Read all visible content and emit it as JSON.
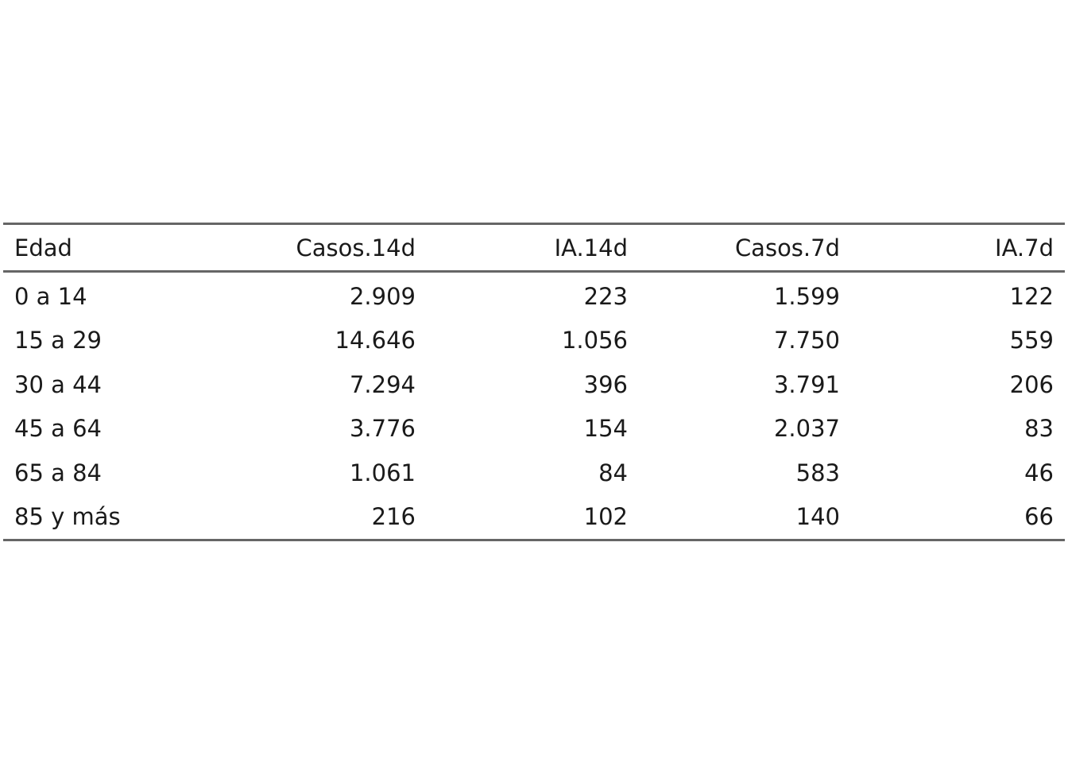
{
  "chart_data": {
    "type": "table",
    "columns": [
      "Edad",
      "Casos.14d",
      "IA.14d",
      "Casos.7d",
      "IA.7d"
    ],
    "rows": [
      [
        "0 a 14",
        "2.909",
        "223",
        "1.599",
        "122"
      ],
      [
        "15 a 29",
        "14.646",
        "1.056",
        "7.750",
        "559"
      ],
      [
        "30 a 44",
        "7.294",
        "396",
        "3.791",
        "206"
      ],
      [
        "45 a 64",
        "3.776",
        "154",
        "2.037",
        "83"
      ],
      [
        "65 a 84",
        "1.061",
        "84",
        "583",
        "46"
      ],
      [
        "85 y más",
        "216",
        "102",
        "140",
        "66"
      ]
    ]
  }
}
